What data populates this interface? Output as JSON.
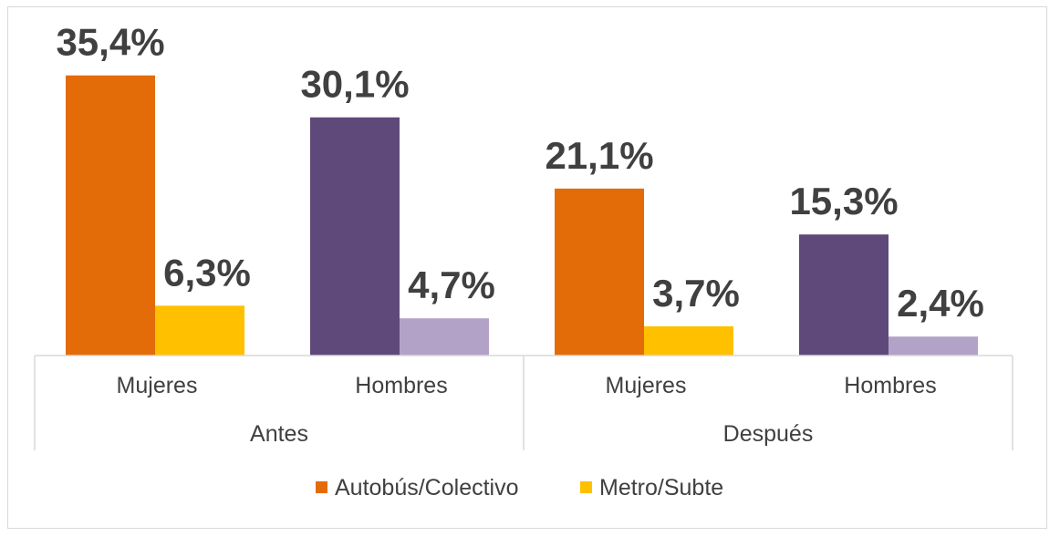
{
  "chart_data": {
    "type": "bar",
    "groups": [
      "Antes",
      "Después"
    ],
    "categories": [
      "Mujeres",
      "Hombres",
      "Mujeres",
      "Hombres"
    ],
    "category_group": [
      0,
      0,
      1,
      1
    ],
    "series": [
      {
        "name": "Autobús/Colectivo",
        "values": [
          35.4,
          30.1,
          21.1,
          15.3
        ]
      },
      {
        "name": "Metro/Subte",
        "values": [
          6.3,
          4.7,
          3.7,
          2.4
        ]
      }
    ],
    "value_labels": [
      [
        "35,4%",
        "30,1%",
        "21,1%",
        "15,3%"
      ],
      [
        "6,3%",
        "4,7%",
        "3,7%",
        "2,4%"
      ]
    ],
    "bar_colors": [
      [
        "#e36c09",
        "#5f497a",
        "#e36c09",
        "#5f497a"
      ],
      [
        "#ffc000",
        "#b2a2c7",
        "#ffc000",
        "#b2a2c7"
      ]
    ],
    "legend_colors": [
      "#e36c09",
      "#ffc000"
    ],
    "ylim": [
      0,
      40
    ],
    "grid": false,
    "legend_position": "bottom",
    "title": "",
    "xlabel": "",
    "ylabel": ""
  }
}
